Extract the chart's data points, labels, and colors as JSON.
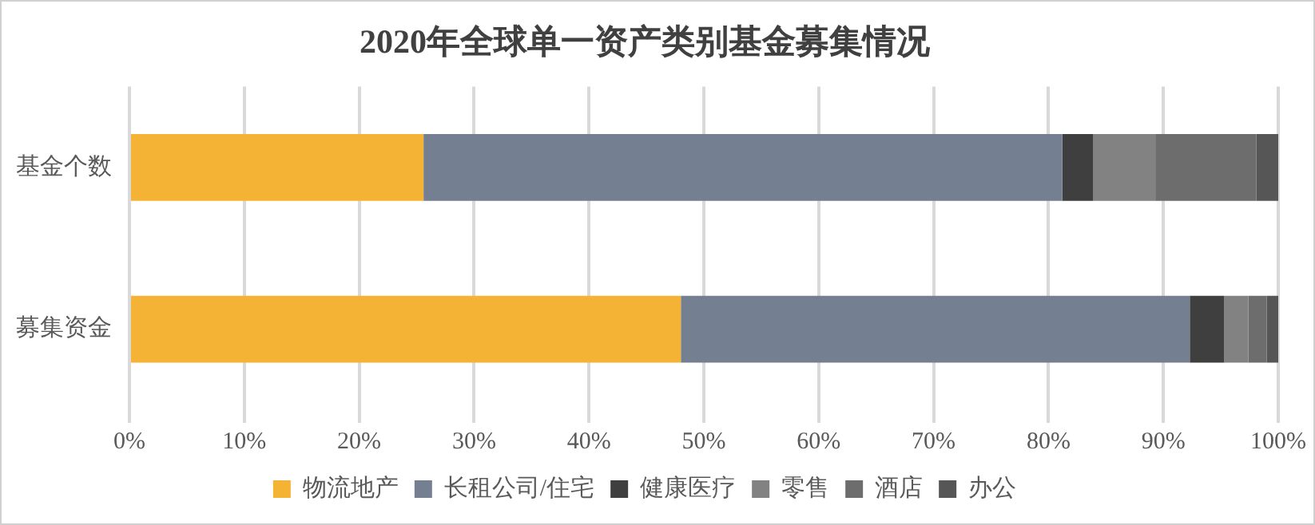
{
  "chart_data": {
    "type": "bar",
    "title": "2020年全球单一资产类别基金募集情况",
    "orientation": "horizontal",
    "stacked": true,
    "categories": [
      "基金个数",
      "募集资金"
    ],
    "series": [
      {
        "name": "物流地产",
        "color": "#f5b335",
        "values": [
          25.6,
          48.0
        ]
      },
      {
        "name": "长租公司/住宅",
        "color": "#748091",
        "values": [
          55.6,
          44.3
        ]
      },
      {
        "name": "健康医疗",
        "color": "#3f3f3f",
        "values": [
          2.7,
          3.0
        ]
      },
      {
        "name": "零售",
        "color": "#828282",
        "values": [
          5.4,
          2.1
        ]
      },
      {
        "name": "酒店",
        "color": "#6d6d6d",
        "values": [
          8.8,
          1.6
        ]
      },
      {
        "name": "办公",
        "color": "#565656",
        "values": [
          1.9,
          1.0
        ]
      }
    ],
    "xlim": [
      0,
      100
    ],
    "xticks": [
      {
        "value": 0,
        "label": "0%"
      },
      {
        "value": 10,
        "label": "10%"
      },
      {
        "value": 20,
        "label": "20%"
      },
      {
        "value": 30,
        "label": "30%"
      },
      {
        "value": 40,
        "label": "40%"
      },
      {
        "value": 50,
        "label": "50%"
      },
      {
        "value": 60,
        "label": "60%"
      },
      {
        "value": 70,
        "label": "70%"
      },
      {
        "value": 80,
        "label": "80%"
      },
      {
        "value": 90,
        "label": "90%"
      },
      {
        "value": 100,
        "label": "100%"
      }
    ],
    "grid": "x",
    "legend": "bottom"
  }
}
